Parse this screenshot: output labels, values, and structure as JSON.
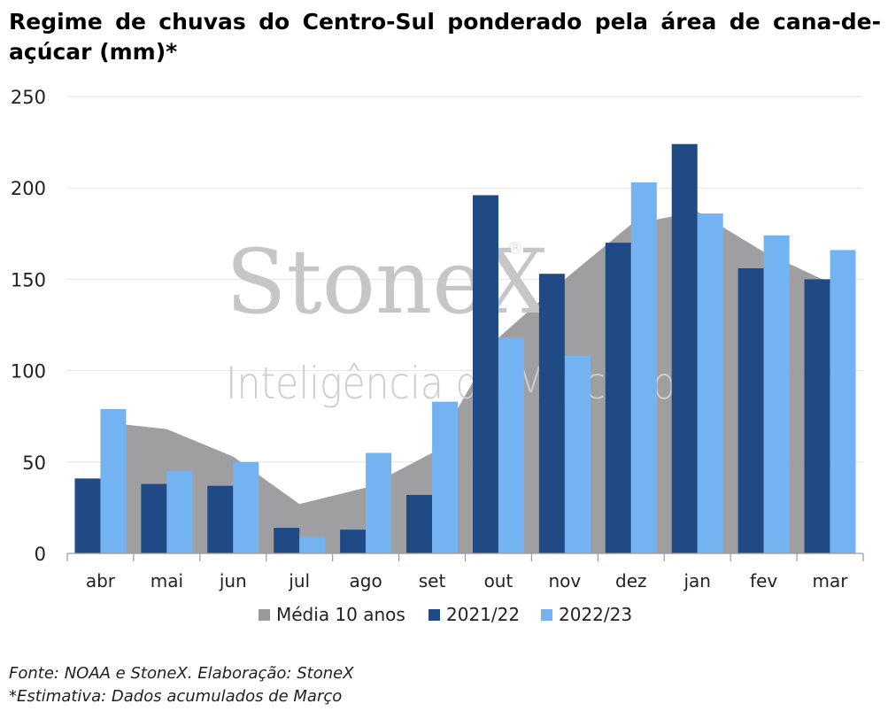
{
  "title": "Regime de chuvas do Centro-Sul ponderado pela área de cana-de-açúcar (mm)*",
  "watermark": {
    "brand": "StoneX",
    "registered": "®",
    "tagline": "Inteligência de Mercado"
  },
  "footer": {
    "source": "Fonte: NOAA e StoneX. Elaboração: StoneX",
    "note": "*Estimativa: Dados acumulados de Março"
  },
  "chart_data": {
    "type": "bar",
    "title": "Regime de chuvas do Centro-Sul ponderado pela área de cana-de-açúcar (mm)*",
    "xlabel": "",
    "ylabel": "",
    "ylim": [
      0,
      250
    ],
    "yticks": [
      0,
      50,
      100,
      150,
      200,
      250
    ],
    "grid": true,
    "legend_position": "bottom",
    "categories": [
      "abr",
      "mai",
      "jun",
      "jul",
      "ago",
      "set",
      "out",
      "nov",
      "dez",
      "jan",
      "fev",
      "mar"
    ],
    "area_series": {
      "name": "Média 10 anos",
      "type": "area",
      "color": "#9a9a9c",
      "values": [
        72,
        68,
        53,
        27,
        36,
        55,
        118,
        150,
        180,
        187,
        165,
        148
      ]
    },
    "series": [
      {
        "name": "2021/22",
        "color": "#1f4a86",
        "values": [
          41,
          38,
          37,
          14,
          13,
          32,
          196,
          153,
          170,
          224,
          156,
          150
        ]
      },
      {
        "name": "2022/23",
        "color": "#74b3f2",
        "values": [
          79,
          45,
          50,
          9,
          55,
          83,
          118,
          108,
          203,
          186,
          174,
          166
        ]
      }
    ]
  }
}
